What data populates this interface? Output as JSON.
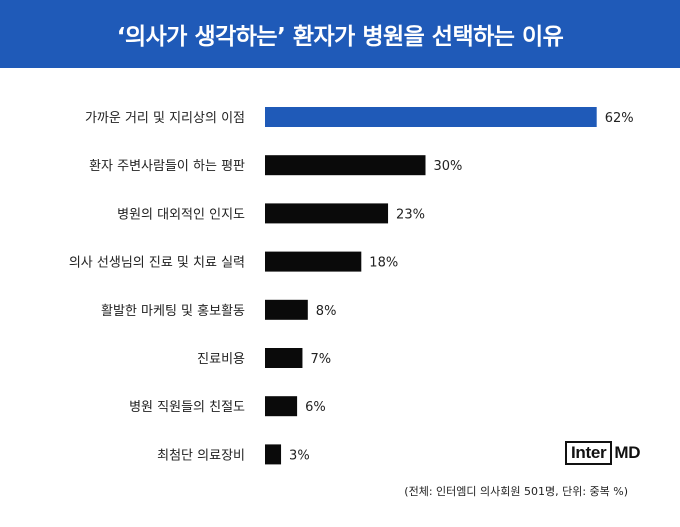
{
  "header": {
    "title": "‘의사가 생각하는’ 환자가 병원을 선택하는 이유",
    "background": "#1f5ab8"
  },
  "chart_data": {
    "type": "bar",
    "orientation": "horizontal",
    "categories": [
      "가까운 거리 및 지리상의 이점",
      "환자 주변사람들이 하는 평판",
      "병원의 대외적인 인지도",
      "의사 선생님의 진료 및 치료 실력",
      "활발한 마케팅 및 홍보활동",
      "진료비용",
      "병원 직원들의 친절도",
      "최첨단 의료장비"
    ],
    "values": [
      62,
      30,
      23,
      18,
      8,
      7,
      6,
      3
    ],
    "value_labels": [
      "62%",
      "30%",
      "23%",
      "18%",
      "8%",
      "7%",
      "6%",
      "3%"
    ],
    "unit": "%",
    "colors": {
      "highlight": "#1f5ab8",
      "default": "#0a0a0a"
    },
    "highlight_index": 0,
    "grid": false
  },
  "logo": {
    "boxed": "Inter",
    "rest": "MD"
  },
  "footnote": "(전체: 인터엠디 의사회원 501명, 단위: 중복 %)"
}
